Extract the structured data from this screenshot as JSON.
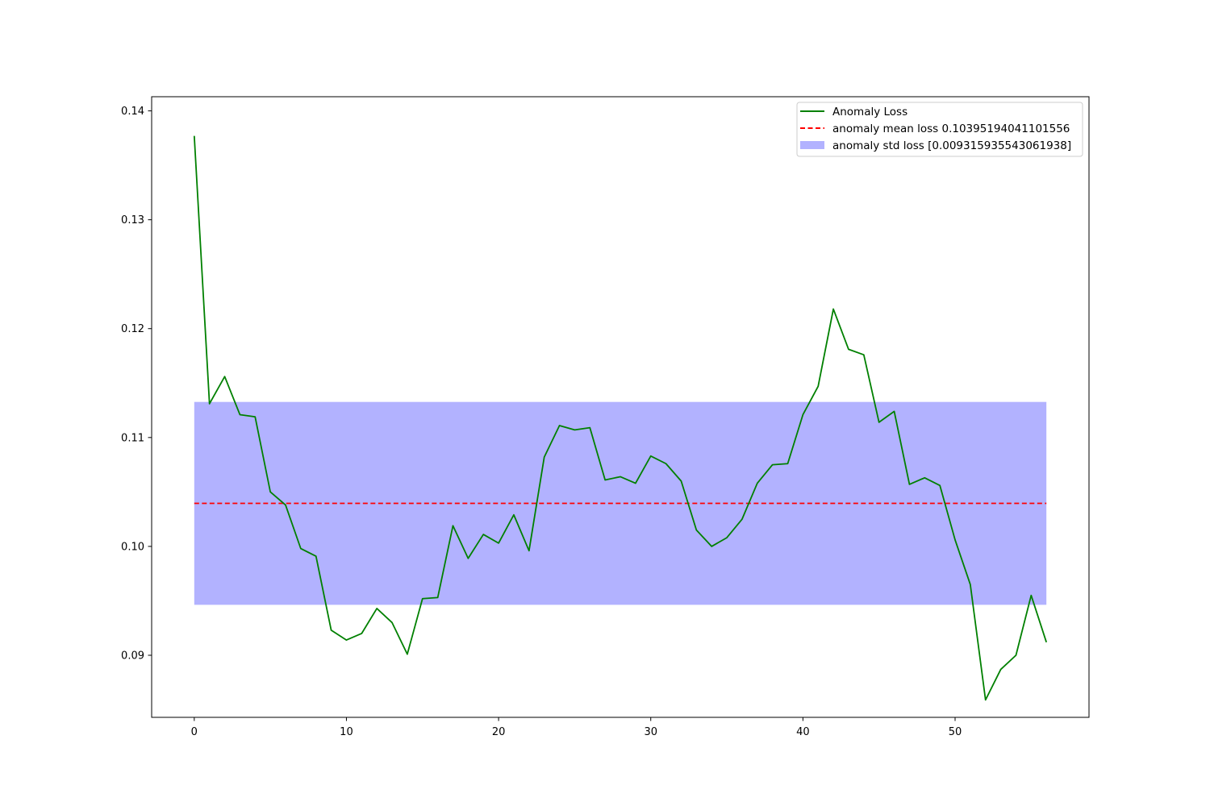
{
  "chart_data": {
    "type": "line",
    "title": "",
    "xlabel": "",
    "ylabel": "",
    "xlim": [
      -2.8,
      58.8
    ],
    "ylim": [
      0.0843,
      0.1413
    ],
    "x_ticks": [
      0,
      10,
      20,
      30,
      40,
      50
    ],
    "y_ticks": [
      0.09,
      0.1,
      0.11,
      0.12,
      0.13,
      0.14
    ],
    "x_tick_labels": [
      "0",
      "10",
      "20",
      "30",
      "40",
      "50"
    ],
    "y_tick_labels": [
      "0.09",
      "0.10",
      "0.11",
      "0.12",
      "0.13",
      "0.14"
    ],
    "grid": false,
    "legend_position": "top-right",
    "series": [
      {
        "name": "Anomaly Loss",
        "kind": "line",
        "color": "#008000",
        "x": [
          0,
          1,
          2,
          3,
          4,
          5,
          6,
          7,
          8,
          9,
          10,
          11,
          12,
          13,
          14,
          15,
          16,
          17,
          18,
          19,
          20,
          21,
          22,
          23,
          24,
          25,
          26,
          27,
          28,
          29,
          30,
          31,
          32,
          33,
          34,
          35,
          36,
          37,
          38,
          39,
          40,
          41,
          42,
          43,
          44,
          45,
          46,
          47,
          48,
          49,
          50,
          51,
          52,
          53,
          54,
          55,
          56
        ],
        "values": [
          0.1377,
          0.1131,
          0.1156,
          0.1121,
          0.1119,
          0.105,
          0.1038,
          0.0998,
          0.0991,
          0.0923,
          0.0914,
          0.092,
          0.0943,
          0.093,
          0.0901,
          0.0952,
          0.0953,
          0.1019,
          0.0989,
          0.1011,
          0.1003,
          0.1029,
          0.0996,
          0.1082,
          0.1111,
          0.1107,
          0.1109,
          0.1061,
          0.1064,
          0.1058,
          0.1083,
          0.1076,
          0.106,
          0.1015,
          0.1,
          0.1008,
          0.1025,
          0.1058,
          0.1075,
          0.1076,
          0.1121,
          0.1147,
          0.1218,
          0.1181,
          0.1176,
          0.1114,
          0.1124,
          0.1057,
          0.1063,
          0.1056,
          0.1006,
          0.0965,
          0.0859,
          0.0887,
          0.09,
          0.0955,
          0.0912
        ]
      },
      {
        "name": "anomaly mean loss 0.10395194041101556",
        "kind": "hline",
        "color": "#ff0000",
        "value": 0.10395194041101556,
        "x_range": [
          0,
          56
        ]
      },
      {
        "name": "anomaly std loss [0.009315935543061938]",
        "kind": "band",
        "color": "#b2b2ff",
        "lower": 0.09463600486795362,
        "upper": 0.1132678759540775,
        "x_range": [
          0,
          56
        ]
      }
    ]
  }
}
